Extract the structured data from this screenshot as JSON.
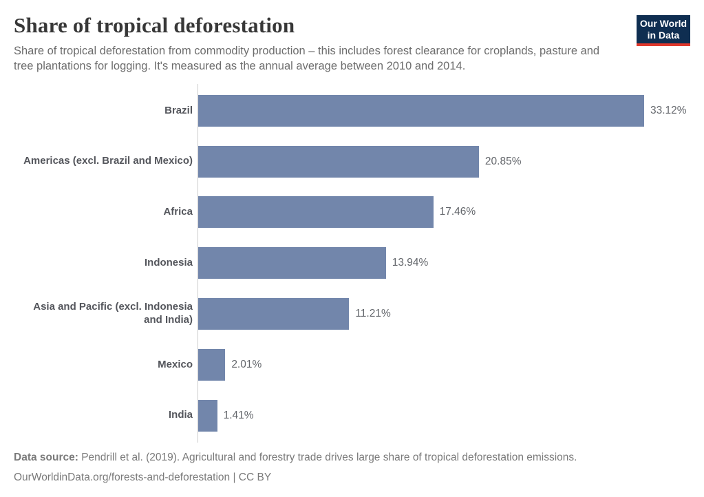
{
  "header": {
    "title": "Share of tropical deforestation",
    "subtitle": "Share of tropical deforestation from commodity production – this includes forest clearance for croplands, pasture and tree plantations for logging. It's measured as the annual average between 2010 and 2014."
  },
  "logo": {
    "line1": "Our World",
    "line2": "in Data",
    "bg_color": "#0f2e51",
    "accent_color": "#e0382c"
  },
  "chart_data": {
    "type": "bar",
    "orientation": "horizontal",
    "title": "Share of tropical deforestation",
    "xlabel": "",
    "ylabel": "",
    "xlim": [
      0,
      33.12
    ],
    "grid": false,
    "legend": false,
    "bar_color": "#7286ab",
    "categories": [
      "Brazil",
      "Americas (excl. Brazil and Mexico)",
      "Africa",
      "Indonesia",
      "Asia and Pacific (excl. Indonesia and India)",
      "Mexico",
      "India"
    ],
    "values": [
      33.12,
      20.85,
      17.46,
      13.94,
      11.21,
      2.01,
      1.41
    ],
    "value_labels": [
      "33.12%",
      "20.85%",
      "17.46%",
      "13.94%",
      "11.21%",
      "2.01%",
      "1.41%"
    ]
  },
  "footer": {
    "source_label": "Data source:",
    "source_text": "Pendrill et al. (2019). Agricultural and forestry trade drives large share of tropical deforestation emissions.",
    "citation": "OurWorldinData.org/forests-and-deforestation | CC BY"
  }
}
